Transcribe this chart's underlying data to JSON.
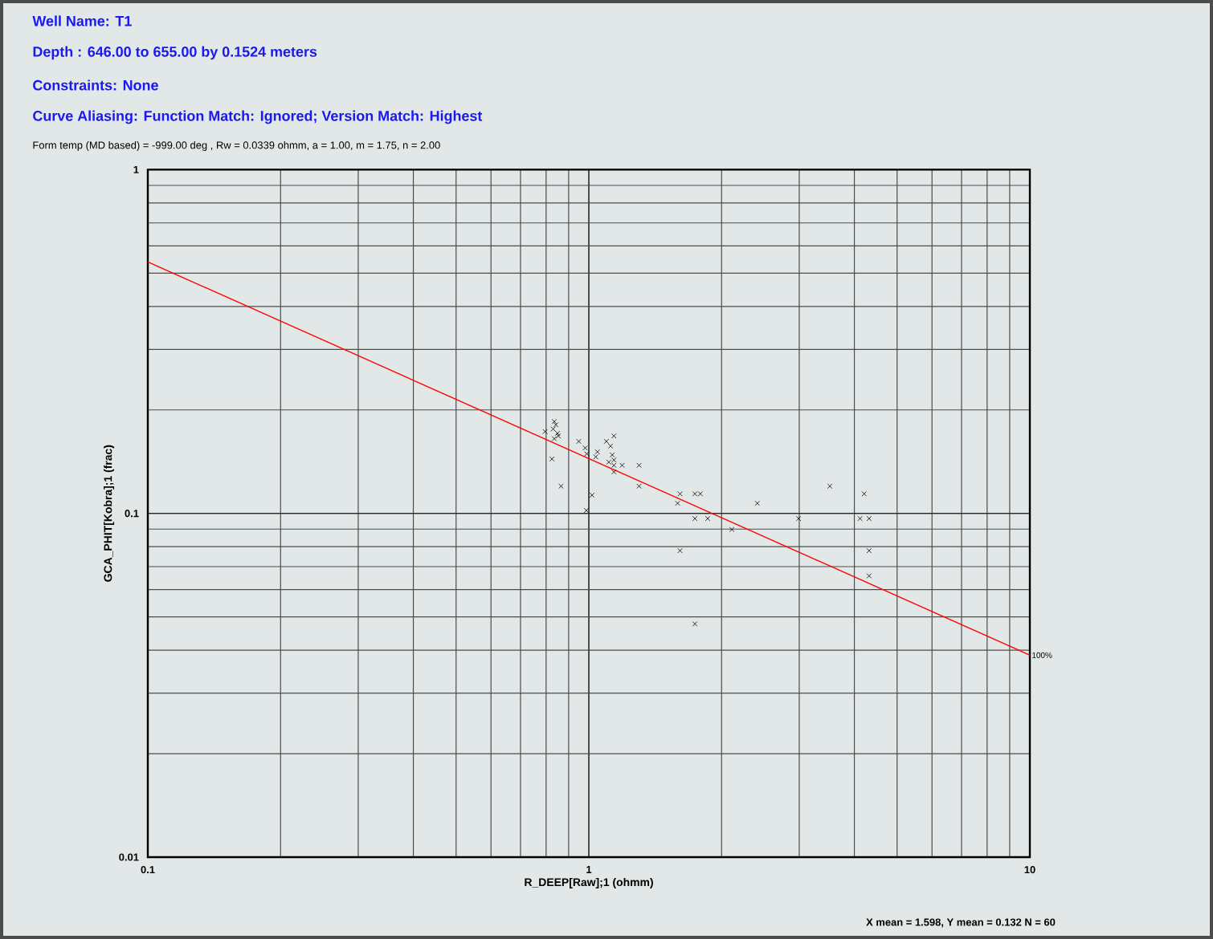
{
  "chart_data": {
    "type": "scatter",
    "title": "Well Name:     T1",
    "subtitle": "Depth :    646.00 to 655.00 by 0.1524 meters",
    "annotations": [
      "Constraints:  None",
      "Curve Aliasing:  Function Match:  Ignored; Version Match:  Highest",
      "Form temp (MD based) = -999.00 deg , Rw = 0.0339 ohmm, a = 1.00, m = 1.75, n = 2.00",
      "X mean = 1.598, Y mean = 0.132  N = 60",
      {
        "text": "100%",
        "x": 10,
        "y": 0.0387
      }
    ],
    "xlabel": "R_DEEP[Raw];1 (ohmm)",
    "ylabel": "GCA_PHIT[Kobra];1 (frac)",
    "log": "xy",
    "xlim": [
      0.1,
      10
    ],
    "ylim": [
      0.01,
      1
    ],
    "xticks": [
      0.1,
      1,
      10
    ],
    "yticks": [
      0.01,
      0.1,
      1
    ],
    "grid": true,
    "marker": "cross",
    "series": [
      {
        "color": "#000000",
        "x": [
          0.835,
          0.842,
          0.83,
          0.849,
          0.796,
          0.853,
          0.835,
          0.825,
          0.865,
          0.949,
          0.981,
          0.989,
          1.046,
          1.037,
          1.096,
          1.12,
          1.14,
          1.13,
          1.14,
          1.11,
          1.14,
          1.19,
          1.14,
          1.017,
          0.987,
          1.3,
          1.3,
          1.61,
          1.59,
          1.74,
          1.79,
          1.74,
          1.86,
          2.11,
          1.61,
          1.74,
          2.41,
          2.99,
          3.52,
          4.21,
          4.12,
          4.32,
          4.32,
          4.32
        ],
        "values": [
          0.185,
          0.181,
          0.176,
          0.171,
          0.173,
          0.168,
          0.165,
          0.144,
          0.12,
          0.162,
          0.155,
          0.149,
          0.151,
          0.146,
          0.162,
          0.157,
          0.168,
          0.148,
          0.143,
          0.141,
          0.138,
          0.138,
          0.132,
          0.113,
          0.102,
          0.138,
          0.12,
          0.114,
          0.107,
          0.114,
          0.114,
          0.0966,
          0.0966,
          0.0898,
          0.0779,
          0.0477,
          0.107,
          0.0966,
          0.12,
          0.114,
          0.0966,
          0.0966,
          0.0779,
          0.0658
        ]
      },
      {
        "type": "line",
        "marker": "none",
        "color": "#ff0000",
        "x": [
          0.1,
          10
        ],
        "values": [
          0.539,
          0.0387
        ]
      }
    ]
  }
}
